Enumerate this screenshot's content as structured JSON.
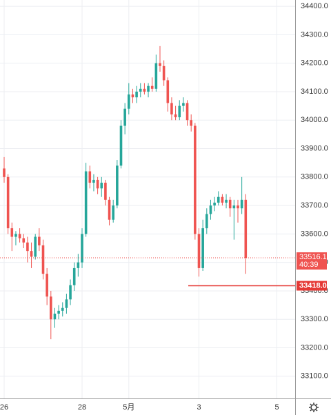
{
  "chart_data": {
    "type": "candlestick",
    "categories": [
      "26",
      null,
      null,
      null,
      null,
      null,
      null,
      null,
      null,
      null,
      null,
      null,
      null,
      null,
      null,
      null,
      null,
      null,
      null,
      null,
      "28",
      null,
      null,
      null,
      null,
      null,
      null,
      null,
      null,
      null,
      null,
      null,
      "5月",
      null,
      null,
      null,
      null,
      null,
      null,
      null,
      null,
      null,
      null,
      null,
      null,
      null,
      null,
      null,
      null,
      null,
      "3",
      null,
      null,
      null,
      null,
      null,
      null,
      null,
      null,
      null,
      null,
      null,
      null,
      null,
      null,
      null,
      null,
      null,
      null,
      null,
      "5",
      null,
      null,
      null,
      null
    ],
    "open": [
      33830,
      33800,
      33620,
      33590,
      33600,
      33585,
      33570,
      33540,
      33520,
      33590,
      33560,
      33460,
      33380,
      33300,
      33320,
      33330,
      33340,
      33370,
      33420,
      33480,
      33500,
      33600,
      33820,
      33780,
      33790,
      33760,
      33780,
      33720,
      33650,
      33700,
      33840,
      33980,
      34040,
      34090,
      34080,
      34100,
      34110,
      34100,
      34120,
      34110,
      34200,
      34190,
      34140,
      34060,
      34020,
      34010,
      34050,
      34060,
      34000,
      33980,
      33600,
      33480,
      33620,
      33670,
      33700,
      33710,
      33730,
      33710,
      33720,
      33690,
      33700,
      33690,
      33720,
      null,
      null,
      null,
      null,
      null,
      null,
      null,
      null,
      null,
      null,
      null,
      null
    ],
    "high": [
      33870,
      33810,
      33640,
      33610,
      33620,
      33600,
      33590,
      33570,
      33600,
      33620,
      33580,
      33480,
      33400,
      33340,
      33350,
      33360,
      33390,
      33440,
      33500,
      33530,
      33620,
      33850,
      33840,
      33810,
      33800,
      33800,
      33790,
      33730,
      33720,
      33860,
      34000,
      34060,
      34130,
      34110,
      34120,
      34130,
      34130,
      34130,
      34150,
      34230,
      34260,
      34210,
      34150,
      34080,
      34050,
      34070,
      34080,
      34070,
      34020,
      33990,
      33620,
      33650,
      33690,
      33720,
      33730,
      33750,
      33740,
      33740,
      33730,
      33720,
      33720,
      33800,
      33740,
      null,
      null,
      null,
      null,
      null,
      null,
      null,
      null,
      null,
      null,
      null,
      null
    ],
    "low": [
      33780,
      33600,
      33540,
      33560,
      33570,
      33550,
      33500,
      33480,
      33510,
      33540,
      33440,
      33350,
      33230,
      33270,
      33300,
      33310,
      33320,
      33350,
      33400,
      33450,
      33480,
      33590,
      33760,
      33750,
      33740,
      33730,
      33700,
      33630,
      33640,
      33690,
      33830,
      33950,
      34020,
      34060,
      34060,
      34080,
      34090,
      34080,
      34100,
      34100,
      34170,
      34120,
      34030,
      34000,
      34000,
      34000,
      34030,
      33980,
      33960,
      33580,
      33450,
      33470,
      33600,
      33650,
      33680,
      33700,
      33700,
      33690,
      33660,
      33580,
      33640,
      33670,
      33460,
      null,
      null,
      null,
      null,
      null,
      null,
      null,
      null,
      null,
      null,
      null,
      null
    ],
    "close": [
      33800,
      33620,
      33590,
      33600,
      33585,
      33570,
      33540,
      33520,
      33590,
      33560,
      33460,
      33380,
      33300,
      33320,
      33330,
      33340,
      33370,
      33420,
      33480,
      33500,
      33600,
      33820,
      33780,
      33790,
      33760,
      33780,
      33720,
      33650,
      33700,
      33840,
      33980,
      34040,
      34090,
      34080,
      34100,
      34110,
      34100,
      34120,
      34110,
      34200,
      34190,
      34140,
      34060,
      34020,
      34010,
      34050,
      34060,
      34000,
      33980,
      33600,
      33480,
      33620,
      33670,
      33700,
      33710,
      33730,
      33710,
      33720,
      33690,
      33700,
      33690,
      33720,
      33516.1,
      null,
      null,
      null,
      null,
      null,
      null,
      null,
      null,
      null,
      null,
      null,
      null
    ],
    "up_color": "#26a69a",
    "down_color": "#ef5350",
    "ylim": [
      33022,
      34422
    ],
    "yticks": [
      {
        "value": 33100,
        "label": "33100.0"
      },
      {
        "value": 33200,
        "label": "33200.0"
      },
      {
        "value": 33300,
        "label": "33300.0"
      },
      {
        "value": 33400,
        "label": "33400.0"
      },
      {
        "value": 33500,
        "label": "33500.0"
      },
      {
        "value": 33600,
        "label": "33600.0"
      },
      {
        "value": 33700,
        "label": "33700.0"
      },
      {
        "value": 33800,
        "label": "33800.0"
      },
      {
        "value": 33900,
        "label": "33900.0"
      },
      {
        "value": 34000,
        "label": "34000.0"
      },
      {
        "value": 34100,
        "label": "34100.0"
      },
      {
        "value": 34200,
        "label": "34200.0"
      },
      {
        "value": 34300,
        "label": "34300.0"
      },
      {
        "value": 34400,
        "label": "34400.0"
      }
    ],
    "grid": true,
    "last_price": {
      "value": 33516.1,
      "countdown": "40:39"
    },
    "level_line": {
      "value": 33418,
      "label": "33418.0",
      "color": "#e53935"
    }
  }
}
